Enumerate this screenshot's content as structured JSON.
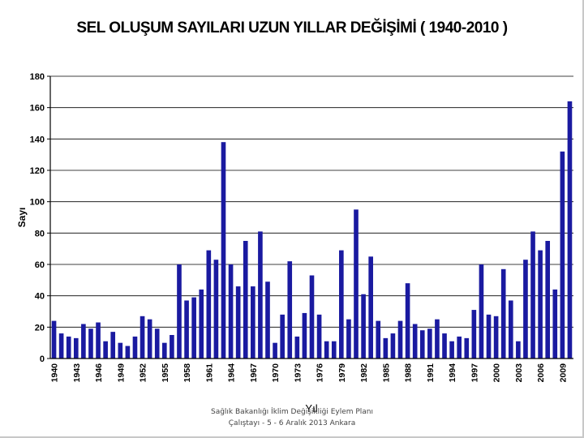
{
  "slide_title": "SEL OLUŞUM SAYILARI UZUN YILLAR DEĞİŞİMİ ( 1940-2010 )",
  "footer": {
    "line1": "Sağlık Bakanlığı İklim Değişikliği Eylem Planı",
    "line2": "Çalıştayı - 5 - 6 Aralık 2013 Ankara"
  },
  "chart_data": {
    "type": "bar",
    "title": "SEL OLUŞUM SAYILARI UZUN YILLAR DEĞİŞİMİ ( 1940-2010 )",
    "xlabel": "Yıl",
    "ylabel": "Sayı",
    "ylim": [
      0,
      180
    ],
    "yticks": [
      0,
      20,
      40,
      60,
      80,
      100,
      120,
      140,
      160,
      180
    ],
    "grid": true,
    "legend": "none",
    "bar_color": "#1a1aa0",
    "x_tick_labels": [
      "1940",
      "1943",
      "1946",
      "1949",
      "1952",
      "1955",
      "1958",
      "1961",
      "1964",
      "1967",
      "1970",
      "1973",
      "1976",
      "1979",
      "1982",
      "1985",
      "1988",
      "1991",
      "1994",
      "1997",
      "2000",
      "2003",
      "2006",
      "2009"
    ],
    "categories": [
      1940,
      1941,
      1942,
      1943,
      1944,
      1945,
      1946,
      1947,
      1948,
      1949,
      1950,
      1951,
      1952,
      1953,
      1954,
      1955,
      1956,
      1957,
      1958,
      1959,
      1960,
      1961,
      1962,
      1963,
      1964,
      1965,
      1966,
      1967,
      1968,
      1969,
      1970,
      1971,
      1972,
      1973,
      1974,
      1975,
      1976,
      1977,
      1978,
      1979,
      1980,
      1981,
      1982,
      1983,
      1984,
      1985,
      1986,
      1987,
      1988,
      1989,
      1990,
      1991,
      1992,
      1993,
      1994,
      1995,
      1996,
      1997,
      1998,
      1999,
      2000,
      2001,
      2002,
      2003,
      2004,
      2005,
      2006,
      2007,
      2008,
      2009,
      2010
    ],
    "values": [
      24,
      16,
      14,
      13,
      22,
      19,
      23,
      11,
      17,
      10,
      8,
      14,
      27,
      25,
      19,
      10,
      15,
      60,
      37,
      39,
      44,
      69,
      63,
      138,
      60,
      46,
      75,
      46,
      81,
      49,
      10,
      28,
      62,
      14,
      29,
      53,
      28,
      11,
      11,
      69,
      25,
      95,
      41,
      65,
      24,
      13,
      16,
      24,
      48,
      22,
      18,
      19,
      25,
      16,
      11,
      14,
      13,
      31,
      60,
      28,
      27,
      57,
      37,
      11,
      63,
      81,
      69,
      75,
      44,
      132,
      164
    ]
  }
}
